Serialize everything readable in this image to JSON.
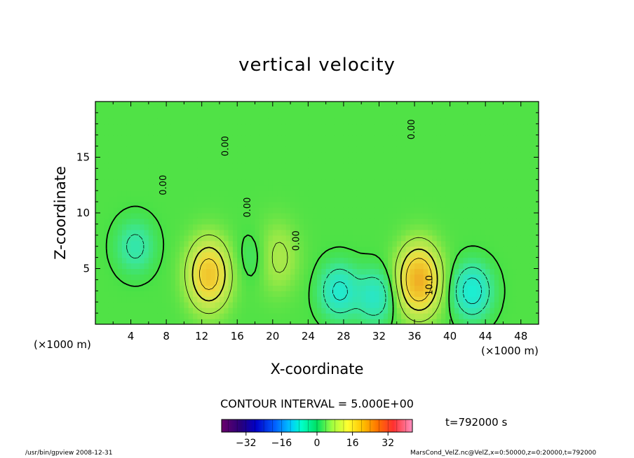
{
  "chart_data": {
    "type": "heatmap",
    "title": "vertical velocity",
    "xlabel": "X-coordinate",
    "ylabel": "Z-coordinate",
    "x_unit": "(×1000 m)",
    "y_unit": "(×1000 m)",
    "xlim": [
      0,
      50
    ],
    "ylim": [
      0,
      20
    ],
    "x_ticks": [
      "4",
      "8",
      "12",
      "16",
      "20",
      "24",
      "28",
      "32",
      "36",
      "40",
      "44",
      "48"
    ],
    "x_tick_values": [
      4,
      8,
      12,
      16,
      20,
      24,
      28,
      32,
      36,
      40,
      44,
      48
    ],
    "y_ticks": [
      "5",
      "10",
      "15"
    ],
    "y_tick_values": [
      5,
      10,
      15
    ],
    "contour_interval": "CONTOUR INTERVAL = 5.000E+00",
    "contour_labels": [
      {
        "text": "0.00",
        "x": 15,
        "z": 16
      },
      {
        "text": "0.00",
        "x": 8,
        "z": 12.5
      },
      {
        "text": "0.00",
        "x": 17.5,
        "z": 10.5
      },
      {
        "text": "0.00",
        "x": 23,
        "z": 7.5
      },
      {
        "text": "0.00",
        "x": 36,
        "z": 17.5
      },
      {
        "text": "10.0",
        "x": 38,
        "z": 3.5
      }
    ],
    "colorbar": {
      "min": -43,
      "max": 43,
      "ticks": [
        "−32",
        "−16",
        "0",
        "16",
        "32"
      ],
      "tick_values": [
        -32,
        -16,
        0,
        16,
        32
      ]
    },
    "features": [
      {
        "kind": "updraft",
        "x": 12.8,
        "z": 4.5,
        "peak": 18
      },
      {
        "kind": "updraft",
        "x": 36.5,
        "z": 4.0,
        "peak": 22
      },
      {
        "kind": "updraft",
        "x": 20.5,
        "z": 6.0,
        "peak": 6
      },
      {
        "kind": "downdraft",
        "x": 4.5,
        "z": 7.0,
        "peak": -7
      },
      {
        "kind": "downdraft",
        "x": 27.5,
        "z": 3.0,
        "peak": -12
      },
      {
        "kind": "downdraft",
        "x": 31.5,
        "z": 2.5,
        "peak": -10
      },
      {
        "kind": "downdraft",
        "x": 42.5,
        "z": 3.0,
        "peak": -14
      },
      {
        "kind": "downdraft",
        "x": 18.0,
        "z": 6.0,
        "peak": -3
      }
    ]
  },
  "annotations": {
    "unit_left": "(×1000 m)",
    "unit_right": "(×1000 m)",
    "time": "t=792000 s",
    "footer_left": "/usr/bin/gpview  2008-12-31",
    "footer_right": "MarsCond_VelZ.nc@VelZ,x=0:50000,z=0:20000,t=792000"
  }
}
